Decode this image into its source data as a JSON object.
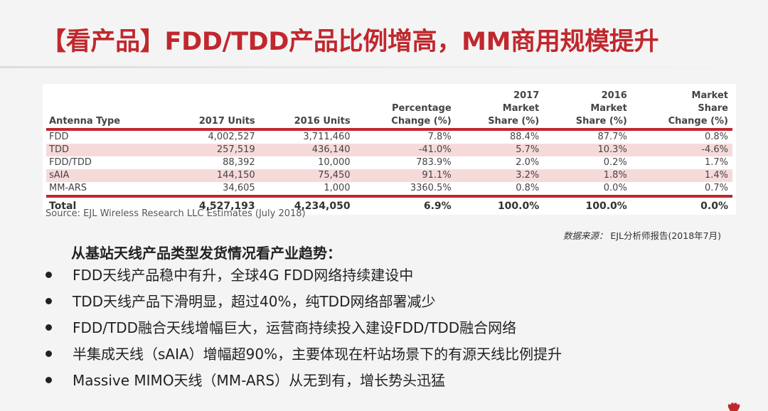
{
  "slide": {
    "title": "【看产品】FDD/TDD产品比例增高，MM商用规模提升"
  },
  "table": {
    "headers": [
      "Antenna Type",
      "2017 Units",
      "2016 Units",
      "Percentage\nChange (%)",
      "2017\nMarket\nShare (%)",
      "2016\nMarket\nShare (%)",
      "Market\nShare\nChange (%)"
    ],
    "rows": [
      [
        "FDD",
        "4,002,527",
        "3,711,460",
        "7.8%",
        "88.4%",
        "87.7%",
        "0.8%"
      ],
      [
        "TDD",
        "257,519",
        "436,140",
        "-41.0%",
        "5.7%",
        "10.3%",
        "-4.6%"
      ],
      [
        "FDD/TDD",
        "88,392",
        "10,000",
        "783.9%",
        "2.0%",
        "0.2%",
        "1.7%"
      ],
      [
        "sAIA",
        "144,150",
        "75,450",
        "91.1%",
        "3.2%",
        "1.8%",
        "1.4%"
      ],
      [
        "MM-ARS",
        "34,605",
        "1,000",
        "3360.5%",
        "0.8%",
        "0.0%",
        "0.7%"
      ]
    ],
    "total": [
      "Total",
      "4,527,193",
      "4,234,050",
      "6.9%",
      "100.0%",
      "100.0%",
      "0.0%"
    ],
    "source": "Source: EJL Wireless Research LLC Estimates (July 2018)"
  },
  "data_source": {
    "label": "数据来源：",
    "value": "EJL分析师报告(2018年7月)"
  },
  "trends": {
    "heading": "从基站天线产品类型发货情况看产业趋势：",
    "bullets": [
      "FDD天线产品稳中有升，全球4G FDD网络持续建设中",
      "TDD天线产品下滑明显，超过40%，纯TDD网络部署减少",
      "FDD/TDD融合天线增幅巨大，运营商持续投入建设FDD/TDD融合网络",
      "半集成天线（sAIA）增幅超90%，主要体现在杆站场景下的有源天线比例提升",
      "Massive MIMO天线（MM-ARS）从无到有，增长势头迅猛"
    ]
  },
  "colors": {
    "accent": "#c0282d",
    "row_shade": "#f6dada"
  }
}
